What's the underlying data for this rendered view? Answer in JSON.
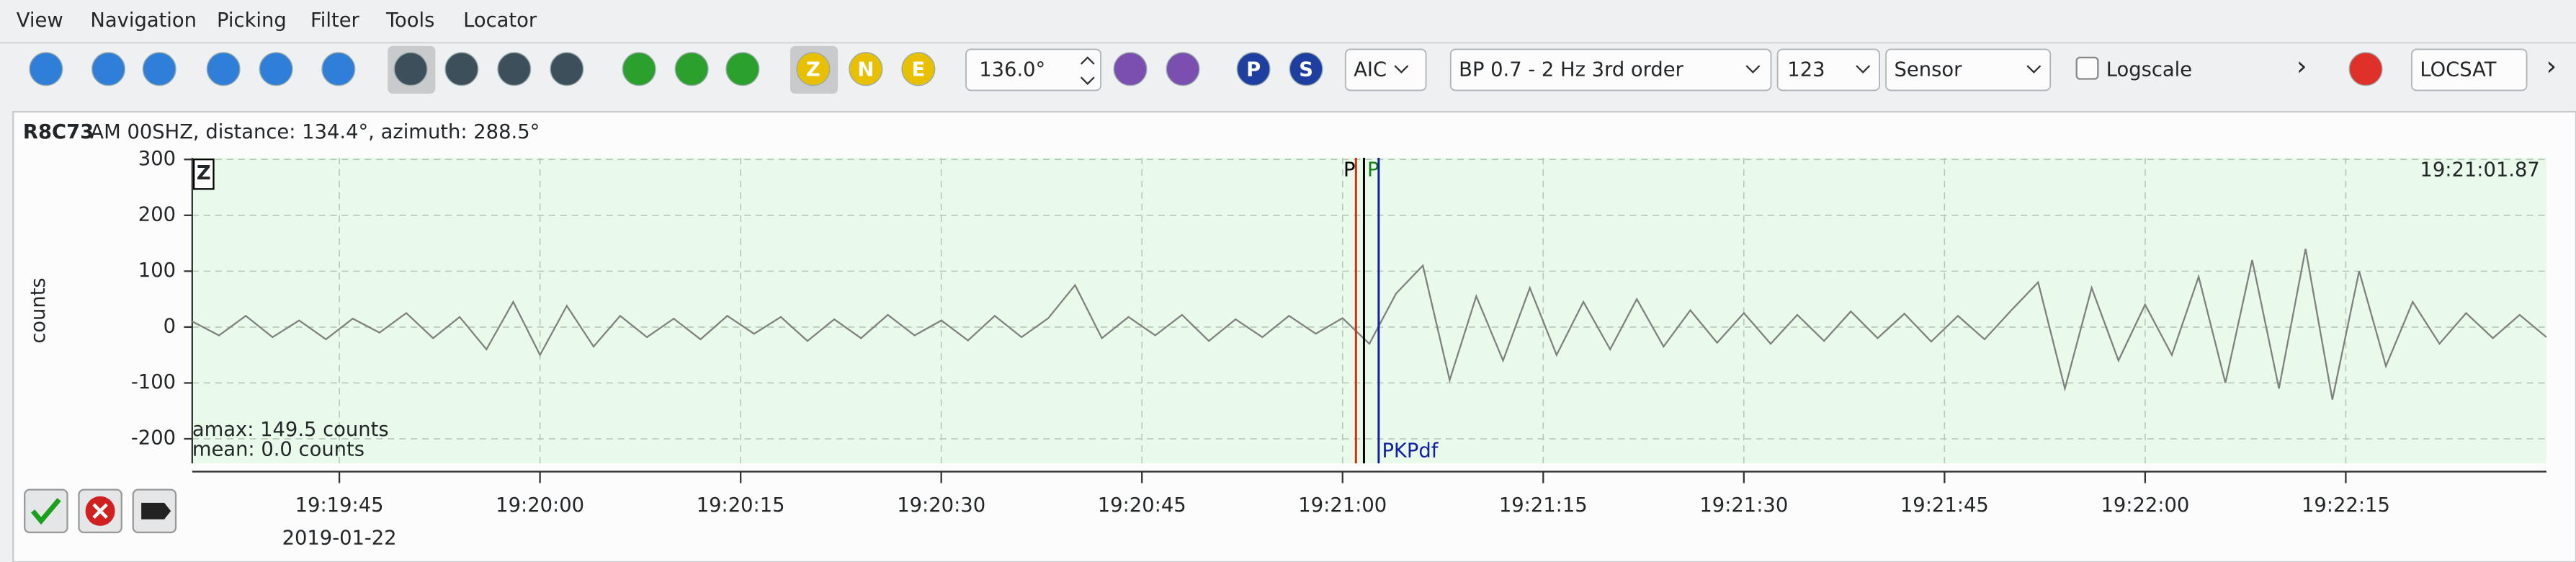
{
  "menu": [
    "View",
    "Navigation",
    "Picking",
    "Filter",
    "Tools",
    "Locator"
  ],
  "toolbar": {
    "components": [
      "Z",
      "N",
      "E"
    ],
    "angle": "136.0°",
    "phases": [
      "P",
      "S"
    ],
    "picker": "AIC",
    "filter": "BP 0.7 - 2 Hz  3rd order",
    "filter_value": "123",
    "mode": "Sensor",
    "logscale": "Logscale",
    "more": "›",
    "locator": "LOCSAT",
    "overflow": "›"
  },
  "station": {
    "code": "R8C73",
    "info": "AM  00SHZ, distance: 134.4°, azimuth: 288.5°"
  },
  "chart_data": {
    "type": "line",
    "y_label": "counts",
    "component": "Z",
    "time_label": "19:21:01.87",
    "annotations": [
      "amax: 149.5 counts",
      "mean: 0.0 counts"
    ],
    "date": "2019-01-22",
    "xlim": [
      69574,
      69750
    ],
    "xticks": [
      {
        "value": 69585,
        "label": "19:19:45"
      },
      {
        "value": 69600,
        "label": "19:20:00"
      },
      {
        "value": 69615,
        "label": "19:20:15"
      },
      {
        "value": 69630,
        "label": "19:20:30"
      },
      {
        "value": 69645,
        "label": "19:20:45"
      },
      {
        "value": 69660,
        "label": "19:21:00"
      },
      {
        "value": 69675,
        "label": "19:21:15"
      },
      {
        "value": 69690,
        "label": "19:21:30"
      },
      {
        "value": 69705,
        "label": "19:21:45"
      },
      {
        "value": 69720,
        "label": "19:22:00"
      },
      {
        "value": 69735,
        "label": "19:22:15"
      }
    ],
    "ylim": [
      -244,
      303
    ],
    "yticks": [
      -200,
      -100,
      0,
      100,
      200,
      300
    ],
    "grid": true,
    "background": "#eafaea",
    "x": [
      69574,
      69576,
      69578,
      69580,
      69582,
      69584,
      69586,
      69588,
      69590,
      69592,
      69594,
      69596,
      69598,
      69600,
      69602,
      69604,
      69606,
      69608,
      69610,
      69612,
      69614,
      69616,
      69618,
      69620,
      69622,
      69624,
      69626,
      69628,
      69630,
      69632,
      69634,
      69636,
      69638,
      69640,
      69642,
      69644,
      69646,
      69648,
      69650,
      69652,
      69654,
      69656,
      69658,
      69660,
      69662,
      69664,
      69666,
      69668,
      69670,
      69672,
      69674,
      69676,
      69678,
      69680,
      69682,
      69684,
      69686,
      69688,
      69690,
      69692,
      69694,
      69696,
      69698,
      69700,
      69702,
      69704,
      69706,
      69708,
      69710,
      69712,
      69714,
      69716,
      69718,
      69720,
      69722,
      69724,
      69726,
      69728,
      69730,
      69732,
      69734,
      69736,
      69738,
      69740,
      69742,
      69744,
      69746,
      69748,
      69750
    ],
    "series": [
      {
        "color": "#808080",
        "values": [
          10,
          -15,
          20,
          -18,
          12,
          -22,
          15,
          -10,
          25,
          -20,
          18,
          -40,
          45,
          -50,
          38,
          -35,
          20,
          -18,
          15,
          -22,
          20,
          -12,
          18,
          -25,
          14,
          -20,
          22,
          -15,
          12,
          -24,
          20,
          -18,
          16,
          75,
          -20,
          18,
          -15,
          22,
          -25,
          14,
          -18,
          20,
          -12,
          16,
          -30,
          60,
          110,
          -95,
          55,
          -60,
          70,
          -50,
          45,
          -40,
          50,
          -35,
          30,
          -28,
          25,
          -30,
          22,
          -25,
          28,
          -20,
          24,
          -26,
          20,
          -22,
          30,
          80,
          -110,
          70,
          -60,
          40,
          -50,
          90,
          -100,
          120,
          -110,
          140,
          -130,
          100,
          -70,
          45,
          -30,
          25,
          -20,
          22,
          -18
        ]
      }
    ],
    "picks": [
      {
        "label": "P",
        "time": 69661.0,
        "color": "#d03010",
        "label_color": "#000000"
      },
      {
        "label": "P",
        "time": 69661.6,
        "color": "#000000",
        "label_color": "#108010"
      },
      {
        "label": "PKPdf",
        "time": 69662.7,
        "color": "#1020a0",
        "label_color": "#1020a0"
      }
    ]
  }
}
